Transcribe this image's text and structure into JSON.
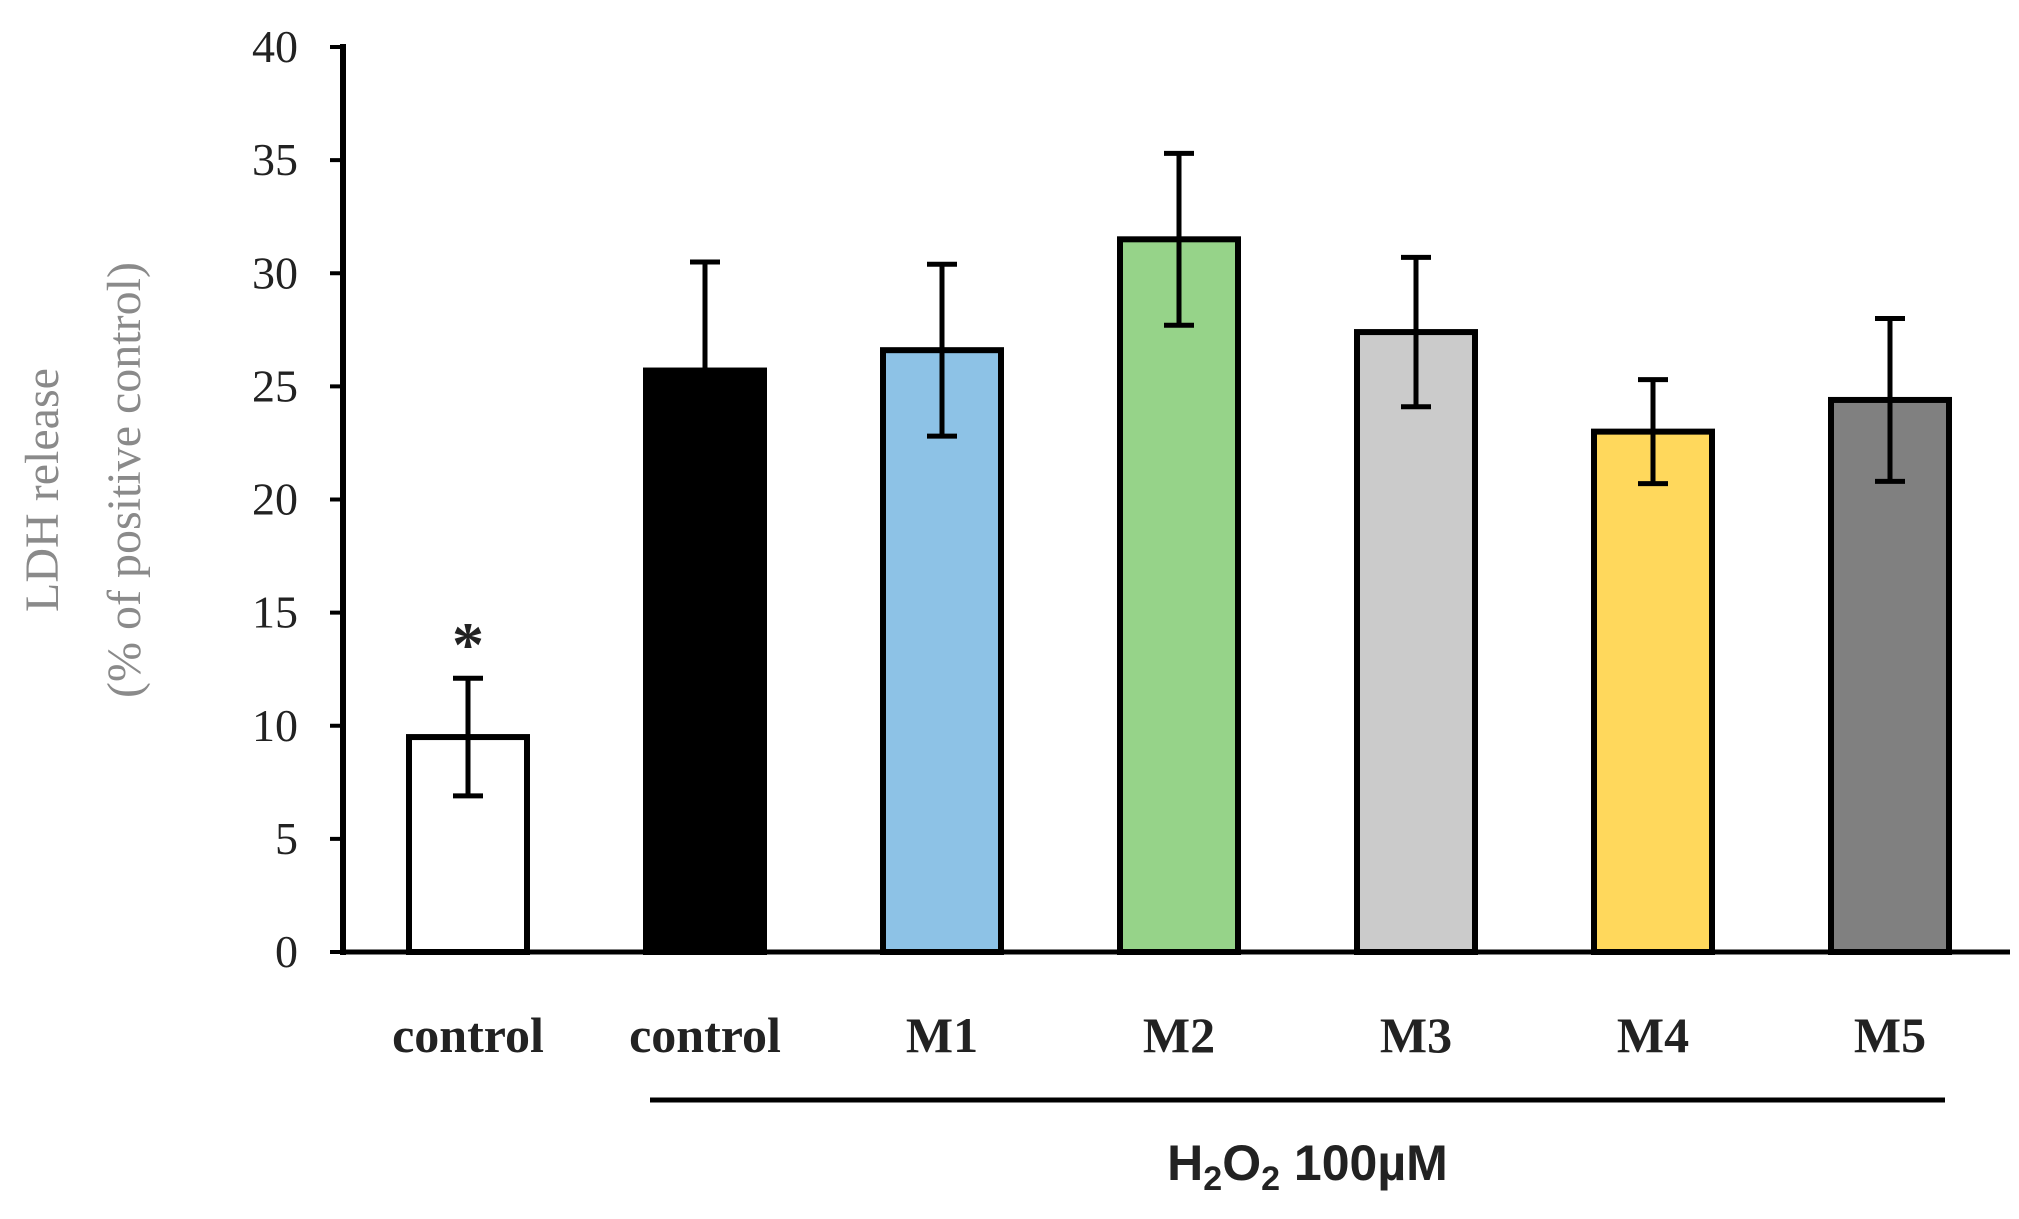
{
  "chart_data": {
    "type": "bar",
    "title": "",
    "xlabel": "",
    "ylabel_line1": "LDH release",
    "ylabel_line2": "(% of positive control)",
    "ylim": [
      0,
      40
    ],
    "yticks": [
      0,
      5,
      10,
      15,
      20,
      25,
      30,
      35,
      40
    ],
    "yticklabels": [
      "0",
      "5",
      "10",
      "15",
      "20",
      "25",
      "30",
      "35",
      "40"
    ],
    "grid": false,
    "categories": [
      "control",
      "control",
      "M1",
      "M2",
      "M3",
      "M4",
      "M5"
    ],
    "values": [
      9.5,
      25.7,
      26.6,
      31.5,
      27.4,
      23.0,
      24.4
    ],
    "errors": [
      2.6,
      4.8,
      3.8,
      3.8,
      3.3,
      2.3,
      3.6
    ],
    "bar_colors": [
      "#ffffff",
      "#000000",
      "#8dc2e6",
      "#96d389",
      "#cbcbcb",
      "#ffd85c",
      "#808080"
    ],
    "annotations": [
      {
        "category_index": 0,
        "text": "*"
      }
    ],
    "group_bracket": {
      "from_category_index": 1,
      "to_category_index": 6,
      "label_prefix": "H",
      "label_sub1": "2",
      "label_mid": "O",
      "label_sub2": "2",
      "label_suffix": " 100µM"
    }
  }
}
